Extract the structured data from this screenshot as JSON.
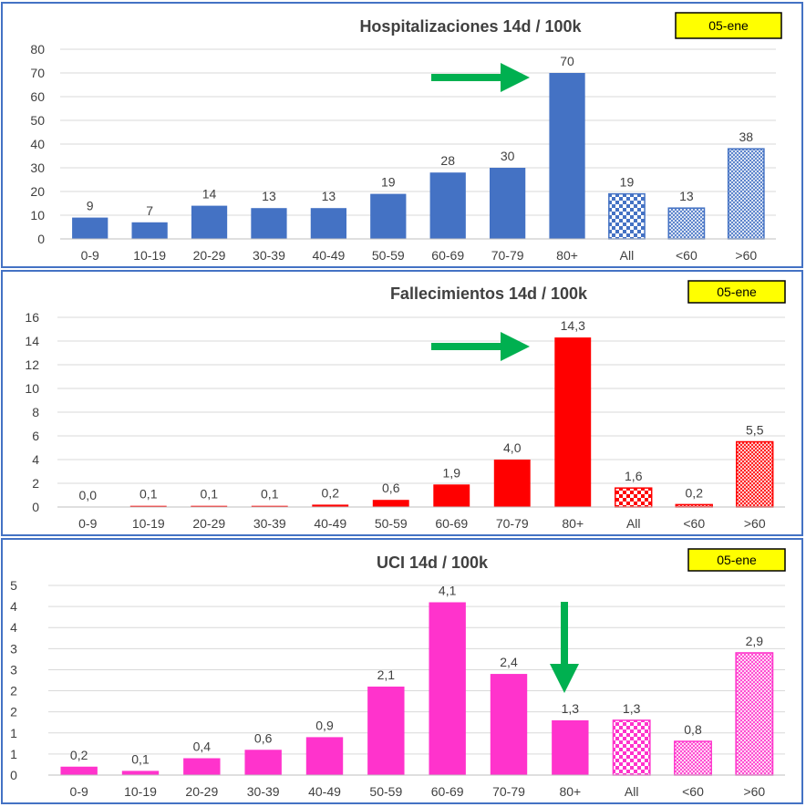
{
  "chart_data": [
    {
      "type": "bar",
      "title": "Hospitalizaciones 14d / 100k",
      "date_badge": "05-ene",
      "categories": [
        "0-9",
        "10-19",
        "20-29",
        "30-39",
        "40-49",
        "50-59",
        "60-69",
        "70-79",
        "80+",
        "All",
        "<60",
        ">60"
      ],
      "values": [
        9,
        7,
        14,
        13,
        13,
        19,
        28,
        30,
        70,
        19,
        13,
        38
      ],
      "data_labels": [
        "9",
        "7",
        "14",
        "13",
        "13",
        "19",
        "28",
        "30",
        "70",
        "19",
        "13",
        "38"
      ],
      "color": "#4472c4",
      "patterns": [
        "solid",
        "solid",
        "solid",
        "solid",
        "solid",
        "solid",
        "solid",
        "solid",
        "solid",
        "checker",
        "fine",
        "fine"
      ],
      "ylim": [
        0,
        80
      ],
      "yticks": [
        "0",
        "10",
        "20",
        "30",
        "40",
        "50",
        "60",
        "70",
        "80"
      ],
      "arrow": {
        "direction": "right",
        "target_category": "80+",
        "color": "#00b050"
      },
      "grid": true
    },
    {
      "type": "bar",
      "title": "Fallecimientos 14d / 100k",
      "date_badge": "05-ene",
      "categories": [
        "0-9",
        "10-19",
        "20-29",
        "30-39",
        "40-49",
        "50-59",
        "60-69",
        "70-79",
        "80+",
        "All",
        "<60",
        ">60"
      ],
      "values": [
        0.0,
        0.1,
        0.1,
        0.1,
        0.2,
        0.6,
        1.9,
        4.0,
        14.3,
        1.6,
        0.2,
        5.5
      ],
      "data_labels": [
        "0,0",
        "0,1",
        "0,1",
        "0,1",
        "0,2",
        "0,6",
        "1,9",
        "4,0",
        "14,3",
        "1,6",
        "0,2",
        "5,5"
      ],
      "color": "#ff0000",
      "patterns": [
        "solid",
        "solid",
        "solid",
        "solid",
        "solid",
        "solid",
        "solid",
        "solid",
        "solid",
        "checker",
        "fine",
        "fine"
      ],
      "ylim": [
        0,
        16
      ],
      "yticks": [
        "0",
        "2",
        "4",
        "6",
        "8",
        "10",
        "12",
        "14",
        "16"
      ],
      "arrow": {
        "direction": "right",
        "target_category": "80+",
        "color": "#00b050"
      },
      "grid": true
    },
    {
      "type": "bar",
      "title": "UCI 14d / 100k",
      "date_badge": "05-ene",
      "categories": [
        "0-9",
        "10-19",
        "20-29",
        "30-39",
        "40-49",
        "50-59",
        "60-69",
        "70-79",
        "80+",
        "All",
        "<60",
        ">60"
      ],
      "values": [
        0.2,
        0.1,
        0.4,
        0.6,
        0.9,
        2.1,
        4.1,
        2.4,
        1.3,
        1.3,
        0.8,
        2.9
      ],
      "data_labels": [
        "0,2",
        "0,1",
        "0,4",
        "0,6",
        "0,9",
        "2,1",
        "4,1",
        "2,4",
        "1,3",
        "1,3",
        "0,8",
        "2,9"
      ],
      "color": "#ff33cc",
      "patterns": [
        "solid",
        "solid",
        "solid",
        "solid",
        "solid",
        "solid",
        "solid",
        "solid",
        "solid",
        "checker",
        "fine",
        "fine"
      ],
      "ylim": [
        0,
        4.5
      ],
      "yticks": [
        "0",
        "1",
        "1",
        "2",
        "2",
        "3",
        "3",
        "4",
        "4",
        "5"
      ],
      "arrow": {
        "direction": "down",
        "target_category": "80+",
        "color": "#00b050"
      },
      "grid": true
    }
  ]
}
